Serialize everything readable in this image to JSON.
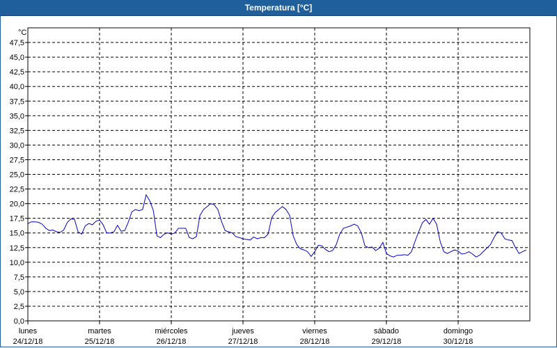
{
  "window": {
    "title": "Temperatura [°C]"
  },
  "chart_data": {
    "type": "line",
    "title": "Temperatura [°C]",
    "ylabel": "°C",
    "ylim": [
      0,
      50
    ],
    "grid": true,
    "y_ticks": [
      "0,0",
      "2,5",
      "5,0",
      "7,5",
      "10,0",
      "12,5",
      "15,0",
      "17,5",
      "20,0",
      "22,5",
      "25,0",
      "27,5",
      "30,0",
      "32,5",
      "35,0",
      "37,5",
      "40,0",
      "42,5",
      "45,0",
      "47,5"
    ],
    "days": [
      {
        "name": "lunes",
        "date": "24/12/18"
      },
      {
        "name": "martes",
        "date": "25/12/18"
      },
      {
        "name": "miércoles",
        "date": "26/12/18"
      },
      {
        "name": "jueves",
        "date": "27/12/18"
      },
      {
        "name": "viernes",
        "date": "28/12/18"
      },
      {
        "name": "sábado",
        "date": "29/12/18"
      },
      {
        "name": "domingo",
        "date": "30/12/18"
      }
    ],
    "x_unit": "days since 24/12/18 00:00",
    "series": [
      {
        "name": "Temperatura",
        "color": "#0000cc",
        "x": [
          0,
          0.05,
          0.1,
          0.15,
          0.2,
          0.25,
          0.3,
          0.35,
          0.4,
          0.45,
          0.5,
          0.55,
          0.6,
          0.65,
          0.7,
          0.75,
          0.8,
          0.85,
          0.9,
          0.95,
          1.0,
          1.05,
          1.1,
          1.15,
          1.2,
          1.25,
          1.3,
          1.35,
          1.4,
          1.45,
          1.5,
          1.55,
          1.6,
          1.65,
          1.7,
          1.75,
          1.8,
          1.85,
          1.9,
          1.95,
          2.0,
          2.05,
          2.1,
          2.15,
          2.2,
          2.25,
          2.3,
          2.35,
          2.4,
          2.45,
          2.5,
          2.55,
          2.6,
          2.65,
          2.7,
          2.75,
          2.8,
          2.85,
          2.9,
          2.95,
          3.0,
          3.05,
          3.1,
          3.15,
          3.2,
          3.25,
          3.3,
          3.35,
          3.4,
          3.45,
          3.5,
          3.55,
          3.6,
          3.65,
          3.7,
          3.75,
          3.8,
          3.85,
          3.9,
          3.95,
          4.0,
          4.05,
          4.1,
          4.15,
          4.2,
          4.25,
          4.3,
          4.35,
          4.4,
          4.45,
          4.5,
          4.55,
          4.6,
          4.65,
          4.7,
          4.75,
          4.8,
          4.85,
          4.9,
          4.95,
          5.0,
          5.05,
          5.1,
          5.15,
          5.2,
          5.25,
          5.3,
          5.35,
          5.4,
          5.45,
          5.5,
          5.55,
          5.6,
          5.65,
          5.7,
          5.75,
          5.8,
          5.85,
          5.9,
          5.95,
          6.0,
          6.05,
          6.1,
          6.15,
          6.2,
          6.25,
          6.3,
          6.35,
          6.4,
          6.45,
          6.5,
          6.55,
          6.6,
          6.65,
          6.7,
          6.75,
          6.8,
          6.85,
          6.9,
          6.95
        ],
        "y": [
          16.6,
          16.9,
          16.9,
          16.8,
          16.5,
          15.8,
          15.4,
          15.5,
          15.2,
          15.1,
          15.5,
          16.8,
          17.4,
          17.3,
          15.2,
          14.8,
          16.2,
          16.6,
          16.4,
          17.0,
          17.2,
          16.4,
          15.0,
          15.0,
          15.2,
          16.3,
          15.3,
          15.4,
          16.8,
          18.6,
          19.0,
          18.8,
          19.0,
          21.5,
          20.5,
          18.8,
          14.5,
          14.2,
          14.8,
          15.0,
          14.8,
          15.0,
          15.8,
          15.8,
          15.8,
          14.2,
          14.0,
          14.4,
          18.0,
          19.0,
          19.5,
          20.0,
          19.8,
          19.0,
          17.0,
          15.4,
          15.2,
          15.0,
          14.4,
          14.2,
          14.0,
          13.9,
          13.8,
          14.3,
          14.0,
          14.2,
          14.2,
          14.8,
          17.6,
          18.5,
          19.0,
          19.5,
          19.0,
          18.0,
          14.5,
          13.0,
          12.3,
          12.1,
          11.8,
          11.0,
          11.8,
          12.9,
          12.8,
          12.2,
          11.8,
          12.0,
          13.0,
          14.8,
          15.8,
          16.0,
          16.2,
          16.5,
          16.2,
          15.0,
          12.8,
          12.5,
          12.6,
          12.0,
          12.4,
          13.4,
          11.5,
          11.1,
          10.9,
          11.2,
          11.2,
          11.3,
          11.2,
          11.8,
          13.6,
          15.2,
          16.7,
          17.3,
          16.5,
          17.5,
          16.5,
          13.5,
          11.8,
          11.5,
          11.8,
          12.1,
          11.9,
          11.4,
          11.5,
          11.8,
          11.4,
          10.9,
          11.2,
          11.8,
          12.4,
          13.0,
          14.2,
          15.2,
          15.0,
          14.0,
          13.8,
          13.7,
          12.5,
          11.5,
          11.8,
          12.1
        ]
      }
    ]
  }
}
